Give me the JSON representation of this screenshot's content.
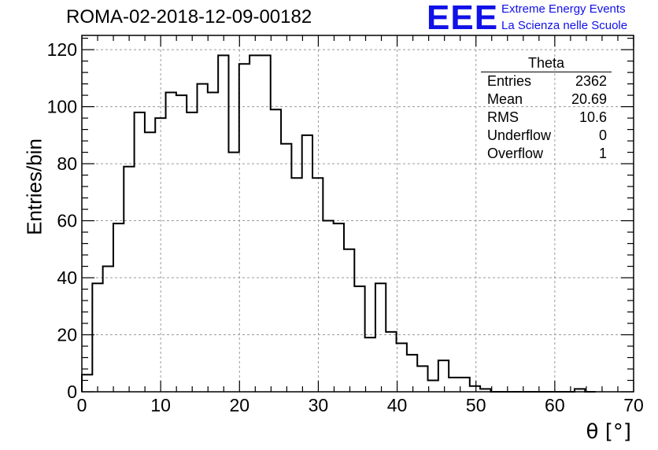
{
  "header": {
    "title": "ROMA-02-2018-12-09-00182",
    "logo_mark": "EEE",
    "logo_line_1": "Extreme Energy Events",
    "logo_line_2": "La Scienza nelle Scuole"
  },
  "stats": {
    "title": "Theta",
    "rows": [
      {
        "label": "Entries",
        "value": "2362"
      },
      {
        "label": "Mean",
        "value": "20.69"
      },
      {
        "label": "RMS",
        "value": "10.6"
      },
      {
        "label": "Underflow",
        "value": "0"
      },
      {
        "label": "Overflow",
        "value": "1"
      }
    ]
  },
  "colors": {
    "logo": "#1010e8",
    "line": "#000000",
    "grid": "#9a9a9a"
  },
  "chart_data": {
    "type": "histogram",
    "xlabel": "θ [°]",
    "ylabel": "Entries/bin",
    "xlim": [
      0,
      70
    ],
    "ylim": [
      0,
      125
    ],
    "grid": true,
    "bin_width": 1.33,
    "bin_edges_start": 0,
    "xticks": [
      0,
      10,
      20,
      30,
      40,
      50,
      60,
      70
    ],
    "yticks": [
      0,
      20,
      40,
      60,
      80,
      100,
      120
    ],
    "values": [
      6,
      38,
      44,
      59,
      79,
      98,
      91,
      96,
      105,
      104,
      98,
      108,
      105,
      118,
      84,
      115,
      118,
      118,
      99,
      87,
      75,
      90,
      75,
      60,
      59,
      50,
      37,
      19,
      38,
      21,
      17,
      13,
      9,
      4,
      11,
      5,
      5,
      2,
      1,
      0,
      0,
      0,
      0,
      0,
      0,
      0,
      0,
      1,
      0
    ]
  }
}
